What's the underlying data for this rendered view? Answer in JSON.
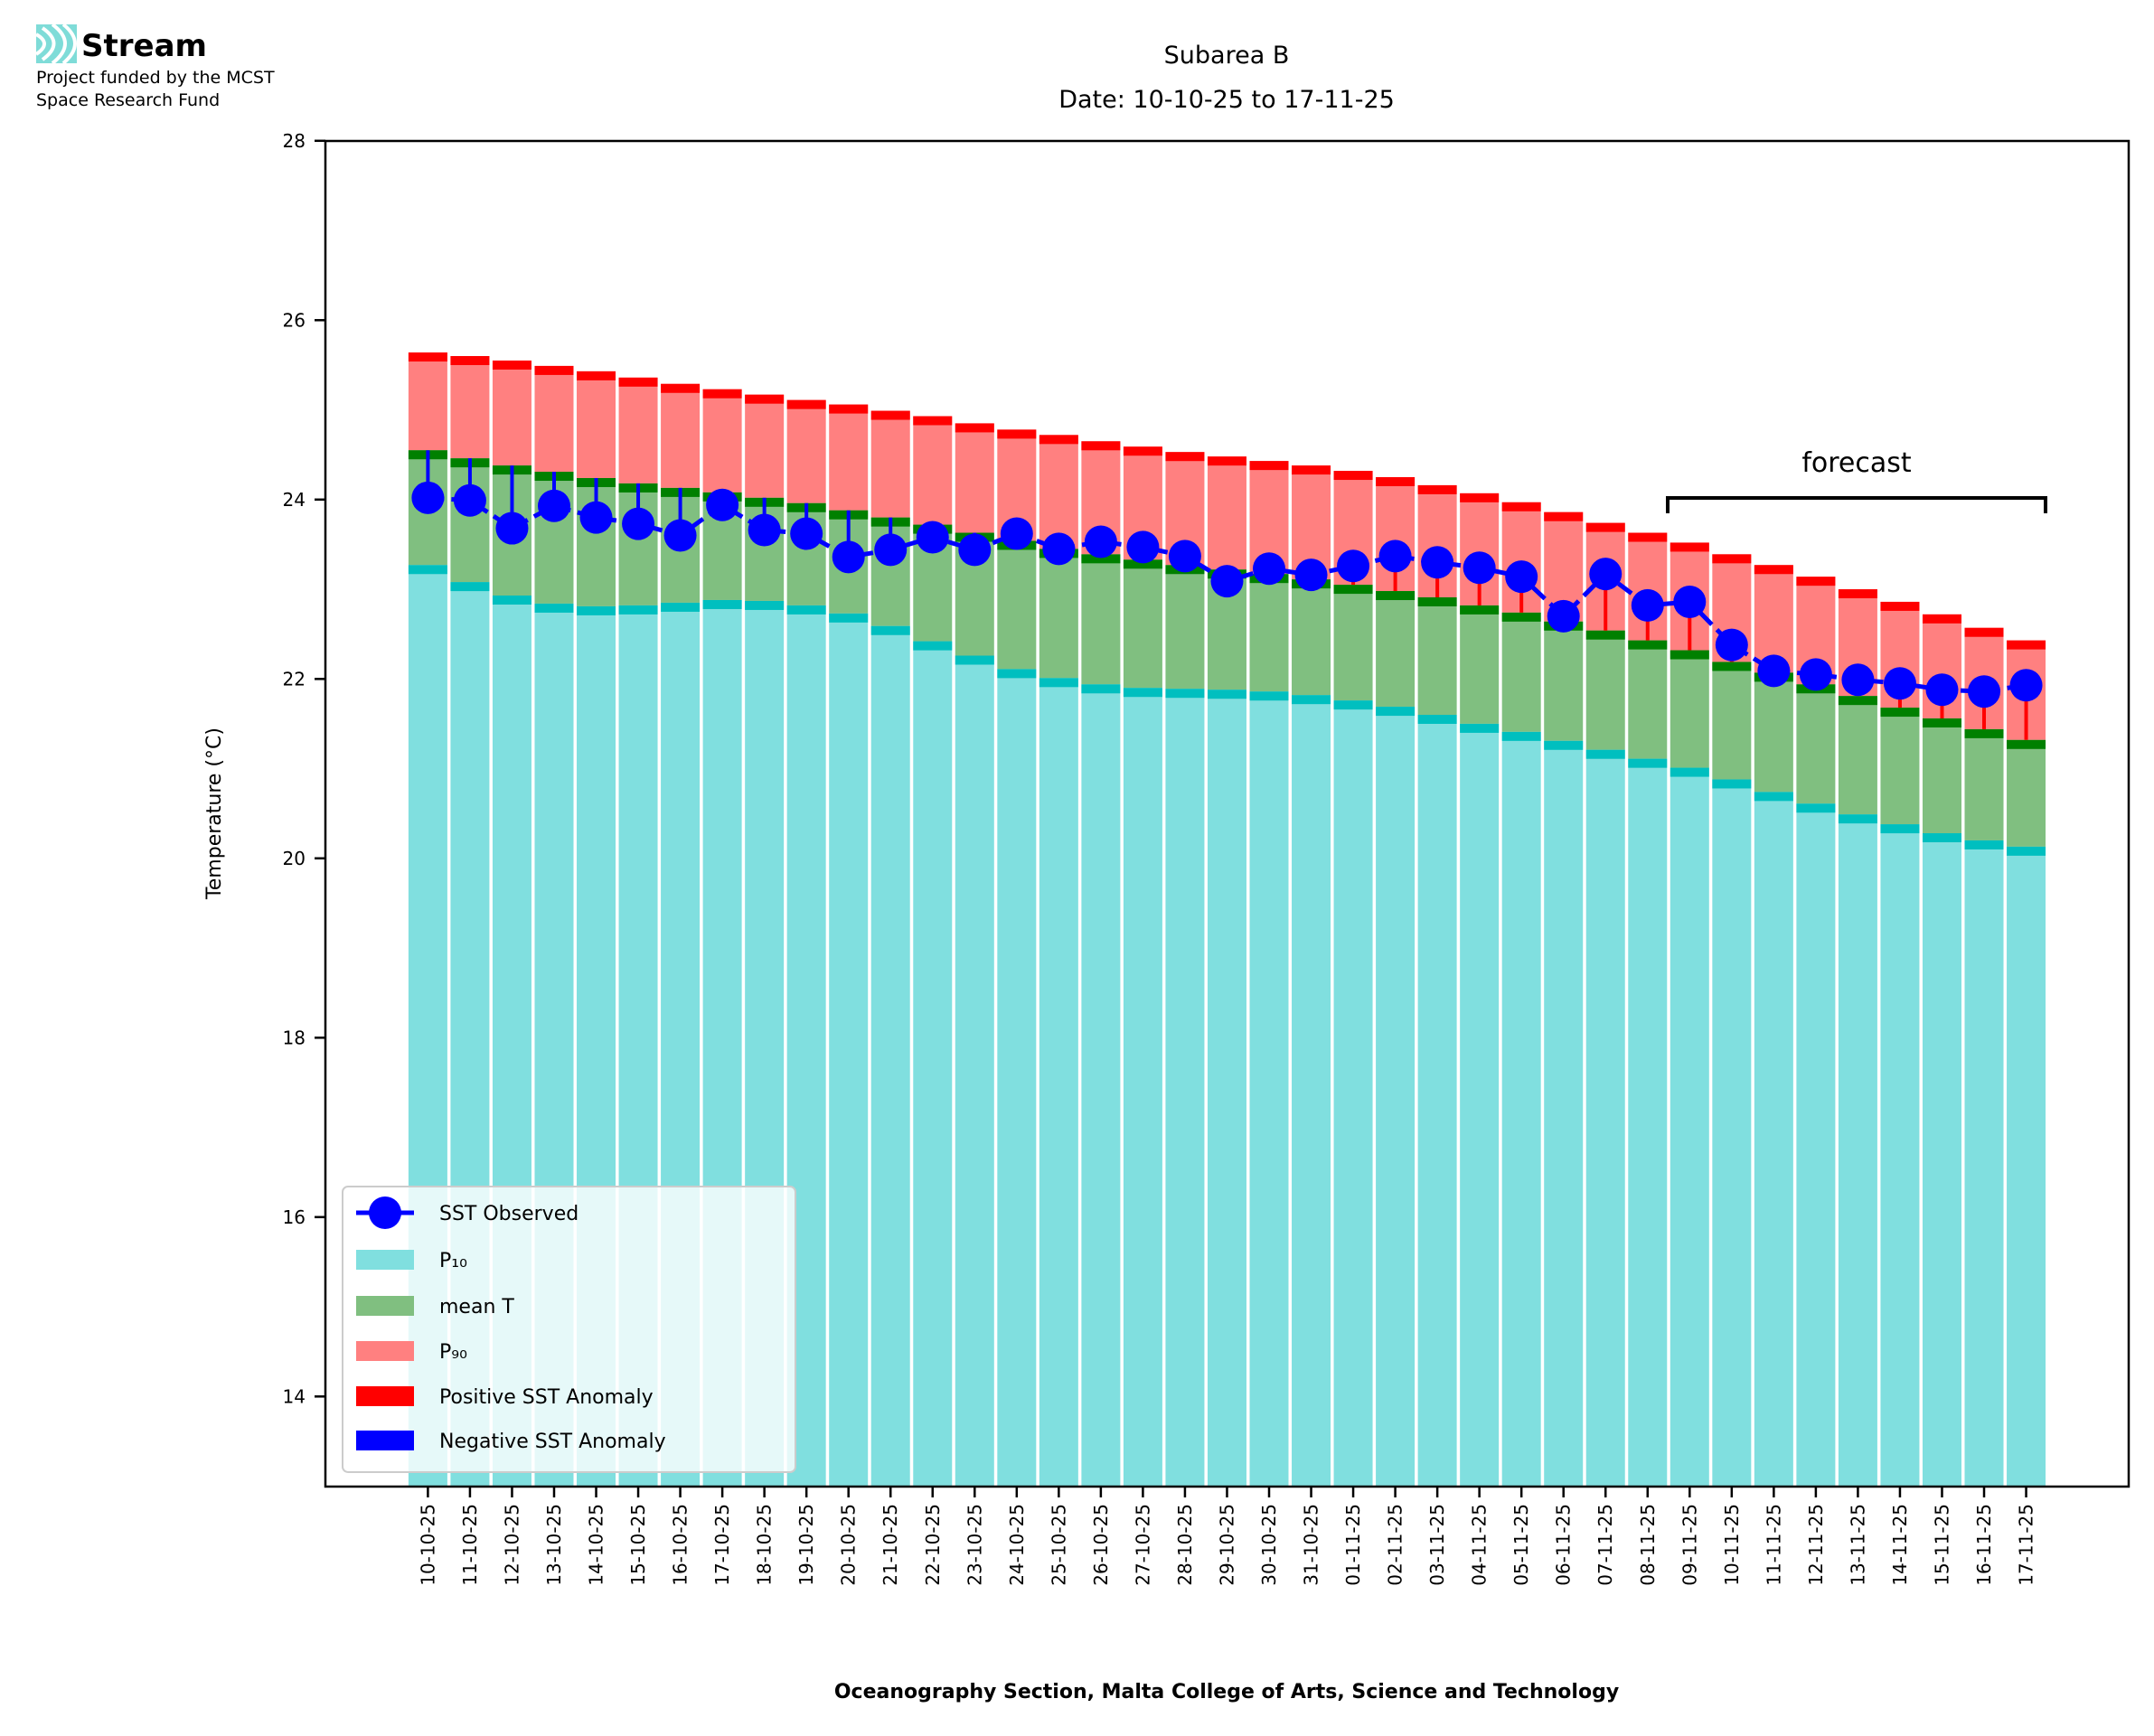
{
  "logo": {
    "name": "Stream",
    "line1": "Project funded by the MCST",
    "line2": "Space Research Fund"
  },
  "chart_data": {
    "type": "bar",
    "title": "Subarea B",
    "subtitle": "Date: 10-10-25 to 17-11-25",
    "xlabel": "Oceanography Section, Malta College of Arts, Science and Technology",
    "ylabel": "Temperature (°C)",
    "ylim": [
      13,
      28
    ],
    "yticks": [
      14,
      16,
      18,
      20,
      22,
      24,
      26,
      28
    ],
    "grid": false,
    "legend_placement": "bottom-left",
    "annotation": "forecast",
    "forecast_range": [
      "09-11-25",
      "17-11-25"
    ],
    "categories": [
      "10-10-25",
      "11-10-25",
      "12-10-25",
      "13-10-25",
      "14-10-25",
      "15-10-25",
      "16-10-25",
      "17-10-25",
      "18-10-25",
      "19-10-25",
      "20-10-25",
      "21-10-25",
      "22-10-25",
      "23-10-25",
      "24-10-25",
      "25-10-25",
      "26-10-25",
      "27-10-25",
      "28-10-25",
      "29-10-25",
      "30-10-25",
      "31-10-25",
      "01-11-25",
      "02-11-25",
      "03-11-25",
      "04-11-25",
      "05-11-25",
      "06-11-25",
      "07-11-25",
      "08-11-25",
      "09-11-25",
      "10-11-25",
      "11-11-25",
      "12-11-25",
      "13-11-25",
      "14-11-25",
      "15-11-25",
      "16-11-25",
      "17-11-25"
    ],
    "series": [
      {
        "name": "P₁₀",
        "color": "#80dfdf",
        "cap_color": "#00bfbf",
        "values": [
          23.27,
          23.08,
          22.93,
          22.84,
          22.81,
          22.82,
          22.85,
          22.88,
          22.87,
          22.82,
          22.73,
          22.59,
          22.42,
          22.26,
          22.11,
          22.01,
          21.94,
          21.9,
          21.89,
          21.88,
          21.86,
          21.82,
          21.76,
          21.69,
          21.6,
          21.5,
          21.41,
          21.31,
          21.21,
          21.11,
          21.01,
          20.88,
          20.74,
          20.61,
          20.49,
          20.38,
          20.28,
          20.2,
          20.13
        ]
      },
      {
        "name": "mean T",
        "color": "#80bf80",
        "cap_color": "#008000",
        "values": [
          24.55,
          24.46,
          24.38,
          24.31,
          24.24,
          24.18,
          24.13,
          24.08,
          24.02,
          23.96,
          23.88,
          23.8,
          23.72,
          23.63,
          23.54,
          23.45,
          23.39,
          23.33,
          23.27,
          23.22,
          23.17,
          23.11,
          23.05,
          22.98,
          22.91,
          22.82,
          22.74,
          22.64,
          22.54,
          22.43,
          22.32,
          22.19,
          22.07,
          21.94,
          21.81,
          21.68,
          21.56,
          21.44,
          21.32
        ]
      },
      {
        "name": "P₉₀",
        "color": "#ff8080",
        "cap_color": "#ff0000",
        "values": [
          25.64,
          25.6,
          25.55,
          25.49,
          25.43,
          25.36,
          25.29,
          25.23,
          25.17,
          25.11,
          25.06,
          24.99,
          24.93,
          24.85,
          24.78,
          24.72,
          24.65,
          24.59,
          24.53,
          24.48,
          24.43,
          24.38,
          24.32,
          24.25,
          24.16,
          24.07,
          23.97,
          23.86,
          23.74,
          23.63,
          23.52,
          23.39,
          23.27,
          23.14,
          23.0,
          22.86,
          22.72,
          22.57,
          22.43
        ]
      },
      {
        "name": "SST Observed",
        "color": "#0000ff",
        "values": [
          24.02,
          23.99,
          23.68,
          23.93,
          23.8,
          23.73,
          23.6,
          23.94,
          23.66,
          23.62,
          23.36,
          23.44,
          23.58,
          23.44,
          23.62,
          23.45,
          23.53,
          23.47,
          23.37,
          23.09,
          23.23,
          23.16,
          23.26,
          23.37,
          23.3,
          23.24,
          23.14,
          22.7,
          23.17,
          22.82,
          22.86,
          22.38,
          22.09,
          22.05,
          21.99,
          21.95,
          21.88,
          21.86,
          21.93
        ]
      }
    ],
    "legend": [
      {
        "label": "SST Observed",
        "kind": "line-marker",
        "color": "#0000ff"
      },
      {
        "label": "P₁₀",
        "kind": "patch",
        "color": "#80dfdf"
      },
      {
        "label": "mean T",
        "kind": "patch",
        "color": "#80bf80"
      },
      {
        "label": "P₉₀",
        "kind": "patch",
        "color": "#ff8080"
      },
      {
        "label": "Positive SST Anomaly",
        "kind": "patch",
        "color": "#ff0000"
      },
      {
        "label": "Negative SST Anomaly",
        "kind": "patch",
        "color": "#0000ff"
      }
    ]
  }
}
